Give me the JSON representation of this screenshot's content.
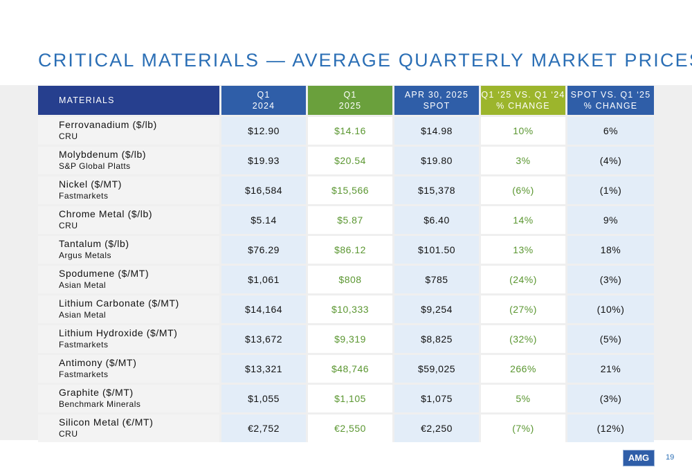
{
  "title": "CRITICAL MATERIALS — AVERAGE QUARTERLY MARKET PRICES",
  "headers": {
    "materials": "MATERIALS",
    "q1_2024_line1": "Q1",
    "q1_2024_line2": "2024",
    "q1_2025_line1": "Q1",
    "q1_2025_line2": "2025",
    "spot_line1": "APR 30, 2025",
    "spot_line2": "SPOT",
    "chg1_line1": "Q1 ‘25 VS. Q1 ‘24",
    "chg1_line2": "% CHANGE",
    "chg2_line1": "SPOT VS. Q1 ‘25",
    "chg2_line2": "% CHANGE"
  },
  "colors": {
    "title": "#2a6eb5",
    "header_navy": "#263f8e",
    "header_blue": "#2f5ea8",
    "header_green": "#6aa03c",
    "header_olive": "#9cb52c",
    "green_text": "#5a9630"
  },
  "rows": [
    {
      "name": "Ferrovanadium ($/lb)",
      "source": "CRU",
      "q1_2024": "$12.90",
      "q1_2025": "$14.16",
      "spot": "$14.98",
      "chg_q": "10%",
      "chg_spot": "6%"
    },
    {
      "name": "Molybdenum ($/lb)",
      "source": "S&P Global Platts",
      "q1_2024": "$19.93",
      "q1_2025": "$20.54",
      "spot": "$19.80",
      "chg_q": "3%",
      "chg_spot": "(4%)"
    },
    {
      "name": "Nickel ($/MT)",
      "source": "Fastmarkets",
      "q1_2024": "$16,584",
      "q1_2025": "$15,566",
      "spot": "$15,378",
      "chg_q": "(6%)",
      "chg_spot": "(1%)"
    },
    {
      "name": "Chrome Metal ($/lb)",
      "source": "CRU",
      "q1_2024": "$5.14",
      "q1_2025": "$5.87",
      "spot": "$6.40",
      "chg_q": "14%",
      "chg_spot": "9%"
    },
    {
      "name": "Tantalum ($/lb)",
      "source": "Argus Metals",
      "q1_2024": "$76.29",
      "q1_2025": "$86.12",
      "spot": "$101.50",
      "chg_q": "13%",
      "chg_spot": "18%"
    },
    {
      "name": "Spodumene ($/MT)",
      "source": "Asian Metal",
      "q1_2024": "$1,061",
      "q1_2025": "$808",
      "spot": "$785",
      "chg_q": "(24%)",
      "chg_spot": "(3%)"
    },
    {
      "name": "Lithium Carbonate ($/MT)",
      "source": "Asian Metal",
      "q1_2024": "$14,164",
      "q1_2025": "$10,333",
      "spot": "$9,254",
      "chg_q": "(27%)",
      "chg_spot": "(10%)"
    },
    {
      "name": "Lithium Hydroxide ($/MT)",
      "source": "Fastmarkets",
      "q1_2024": "$13,672",
      "q1_2025": "$9,319",
      "spot": "$8,825",
      "chg_q": "(32%)",
      "chg_spot": "(5%)"
    },
    {
      "name": "Antimony ($/MT)",
      "source": "Fastmarkets",
      "q1_2024": "$13,321",
      "q1_2025": "$48,746",
      "spot": "$59,025",
      "chg_q": "266%",
      "chg_spot": "21%"
    },
    {
      "name": "Graphite ($/MT)",
      "source": "Benchmark Minerals",
      "q1_2024": "$1,055",
      "q1_2025": "$1,105",
      "spot": "$1,075",
      "chg_q": "5%",
      "chg_spot": "(3%)"
    },
    {
      "name": "Silicon Metal (€/MT)",
      "source": "CRU",
      "q1_2024": "€2,752",
      "q1_2025": "€2,550",
      "spot": "€2,250",
      "chg_q": "(7%)",
      "chg_spot": "(12%)"
    }
  ],
  "footer": {
    "logo_text": "AMG",
    "page_number": "19"
  }
}
